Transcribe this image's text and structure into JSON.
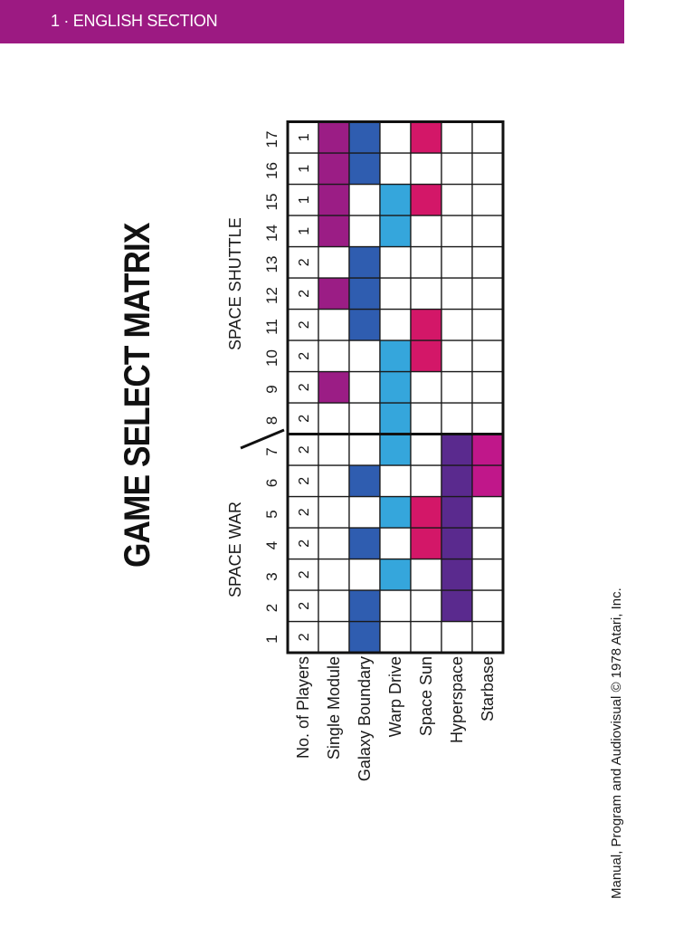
{
  "header": {
    "section_label": "1 · ENGLISH SECTION"
  },
  "matrix": {
    "title": "GAME SELECT MATRIX",
    "group_labels": {
      "space_war": "SPACE WAR",
      "space_shuttle": "SPACE SHUTTLE"
    },
    "columns": [
      "1",
      "2",
      "3",
      "4",
      "5",
      "6",
      "7",
      "8",
      "9",
      "10",
      "11",
      "12",
      "13",
      "14",
      "15",
      "16",
      "17"
    ],
    "rows": [
      {
        "label": "No. of Players",
        "color": "",
        "values": [
          "2",
          "2",
          "2",
          "2",
          "2",
          "2",
          "2",
          "2",
          "2",
          "2",
          "2",
          "2",
          "2",
          "1",
          "1",
          "1",
          "1"
        ]
      },
      {
        "label": "Single Module",
        "color": "#9b1d85",
        "on": [
          9,
          12,
          14,
          15,
          16,
          17
        ]
      },
      {
        "label": "Galaxy Boundary",
        "color": "#2f5db0",
        "on": [
          1,
          2,
          4,
          6,
          11,
          12,
          13,
          16,
          17
        ]
      },
      {
        "label": "Warp Drive",
        "color": "#35a6dc",
        "on": [
          3,
          5,
          7,
          8,
          9,
          10,
          14,
          15
        ]
      },
      {
        "label": "Space Sun",
        "color": "#d31768",
        "on": [
          4,
          5,
          10,
          11,
          15,
          17
        ]
      },
      {
        "label": "Hyperspace",
        "color": "#5a2a8e",
        "on": [
          2,
          3,
          4,
          5,
          6,
          7
        ]
      },
      {
        "label": "Starbase",
        "color": "#c0178a",
        "on": [
          6,
          7
        ]
      }
    ]
  },
  "footer": {
    "copyright": "Manual, Program and Audiovisual © 1978 Atari, Inc."
  }
}
